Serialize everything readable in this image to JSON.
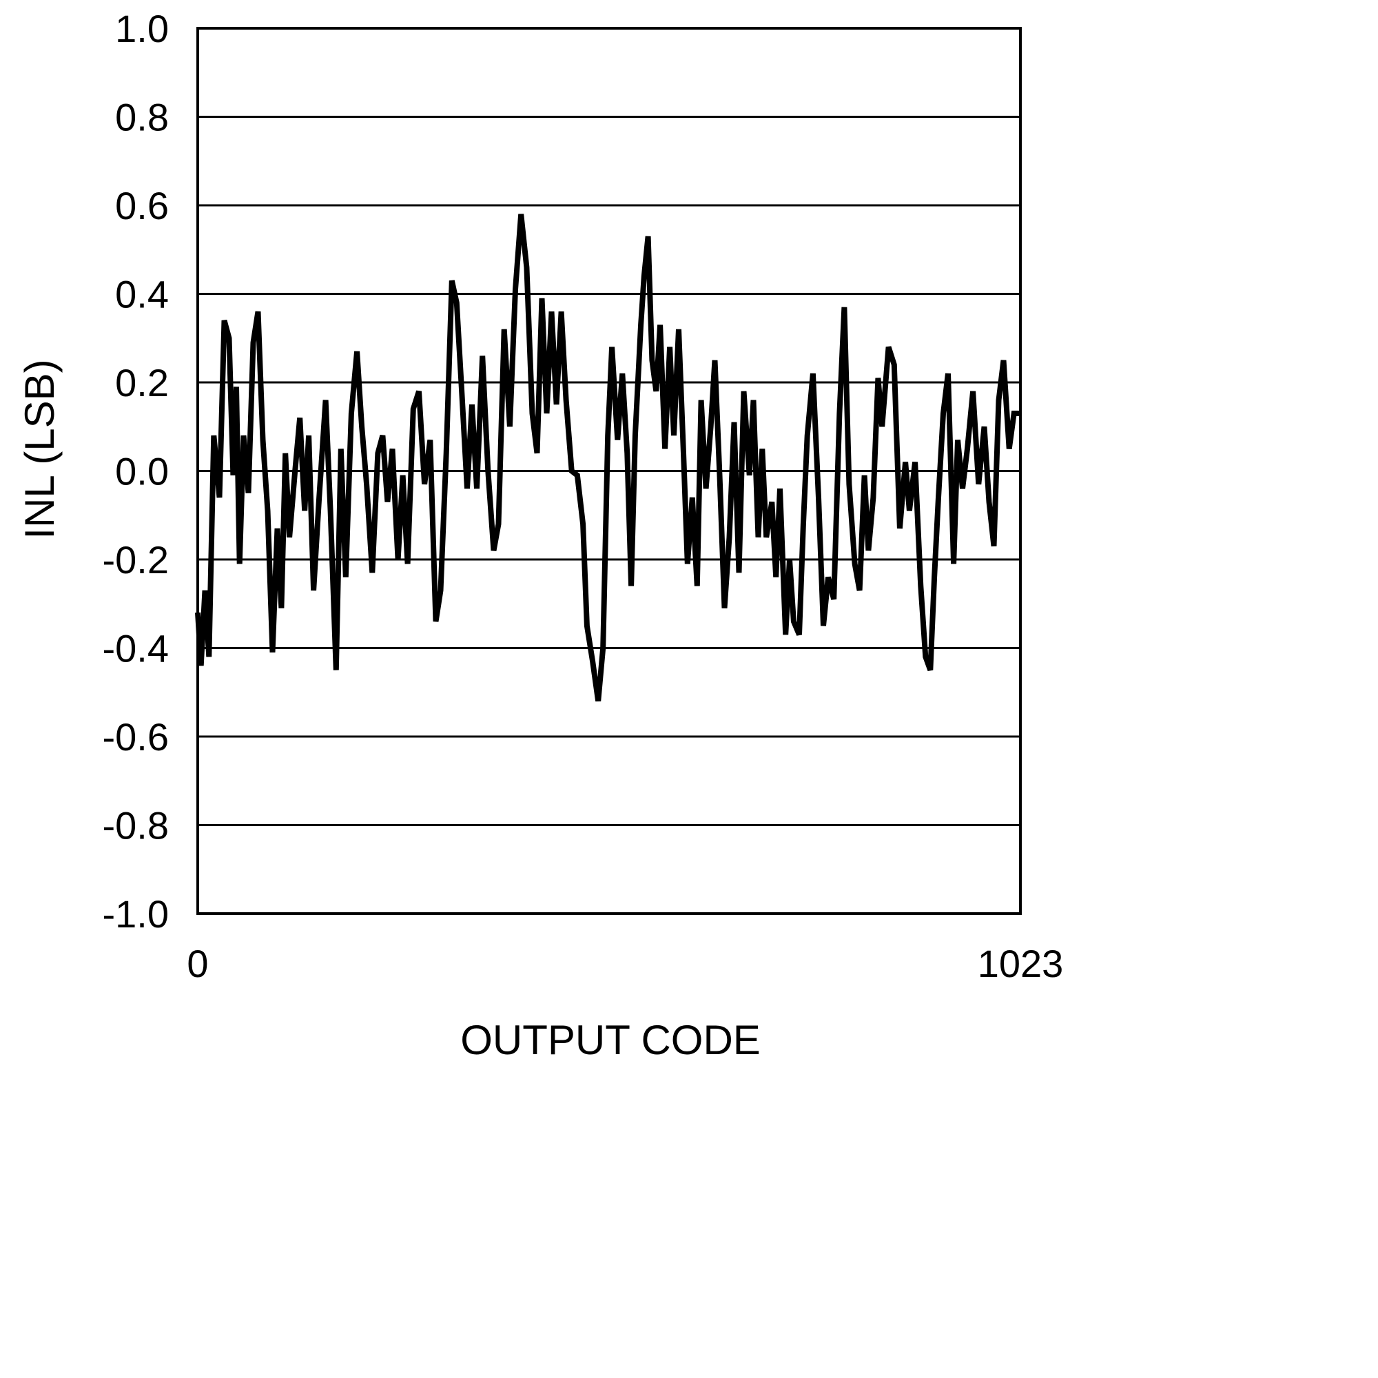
{
  "chart_data": {
    "type": "line",
    "title": "",
    "xlabel": "OUTPUT CODE",
    "ylabel": "INL (LSB)",
    "xlim": [
      0,
      1023
    ],
    "ylim": [
      -1.0,
      1.0
    ],
    "x_ticks": [
      "0",
      "1023"
    ],
    "y_ticks": [
      "1.0",
      "0.8",
      "0.6",
      "0.4",
      "0.2",
      "0.0",
      "-0.2",
      "-0.4",
      "-0.6",
      "-0.8",
      "-1.0"
    ],
    "grid": "horizontal",
    "line_color": "#000000",
    "series": [
      {
        "x": [
          0,
          4,
          9,
          14,
          20,
          27,
          33,
          39,
          44,
          48,
          52,
          57,
          63,
          69,
          75,
          81,
          87,
          93,
          99,
          104,
          109,
          114,
          121,
          127,
          133,
          138,
          144,
          151,
          159,
          165,
          172,
          178,
          184,
          191,
          198,
          204,
          210,
          217,
          224,
          230,
          236,
          242,
          249,
          255,
          261,
          268,
          275,
          282,
          289,
          296,
          302,
          309,
          316,
          322,
          328,
          335,
          341,
          347,
          354,
          361,
          368,
          374,
          381,
          388,
          395,
          402,
          409,
          416,
          422,
          428,
          434,
          440,
          446,
          452,
          458,
          465,
          472,
          479,
          484,
          491,
          498,
          504,
          510,
          515,
          522,
          528,
          534,
          539,
          544,
          551,
          555,
          560,
          565,
          570,
          575,
          581,
          587,
          592,
          598,
          604,
          609,
          615,
          621,
          626,
          632,
          638,
          643,
          649,
          655,
          661,
          667,
          673,
          679,
          686,
          691,
          697,
          702,
          707,
          714,
          719,
          724,
          731,
          736,
          741,
          748,
          753,
          758,
          765,
          772,
          778,
          784,
          791,
          798,
          804,
          810,
          817,
          823,
          829,
          834,
          840,
          846,
          851,
          859,
          866,
          873,
          880,
          885,
          892,
          899,
          905,
          911,
          916,
          921,
          927,
          933,
          940,
          945,
          951,
          957,
          964,
          971,
          978,
          984,
          990,
          996,
          1002,
          1009,
          1015,
          1023
        ],
        "y": [
          -0.32,
          -0.44,
          -0.27,
          -0.42,
          0.08,
          -0.06,
          0.34,
          0.3,
          -0.01,
          0.19,
          -0.21,
          0.08,
          -0.05,
          0.29,
          0.36,
          0.07,
          -0.09,
          -0.41,
          -0.13,
          -0.31,
          0.04,
          -0.15,
          0.0,
          0.12,
          -0.09,
          0.08,
          -0.27,
          -0.06,
          0.16,
          -0.09,
          -0.45,
          0.05,
          -0.24,
          0.13,
          0.27,
          0.1,
          -0.03,
          -0.23,
          0.04,
          0.08,
          -0.07,
          0.05,
          -0.2,
          -0.01,
          -0.21,
          0.14,
          0.18,
          -0.03,
          0.07,
          -0.34,
          -0.27,
          0.04,
          0.43,
          0.38,
          0.19,
          -0.04,
          0.15,
          -0.04,
          0.26,
          0.0,
          -0.18,
          -0.12,
          0.32,
          0.1,
          0.41,
          0.58,
          0.46,
          0.13,
          0.04,
          0.39,
          0.13,
          0.36,
          0.15,
          0.36,
          0.16,
          0.0,
          -0.01,
          -0.12,
          -0.35,
          -0.43,
          -0.52,
          -0.4,
          0.08,
          0.28,
          0.07,
          0.22,
          0.04,
          -0.26,
          0.08,
          0.33,
          0.44,
          0.53,
          0.25,
          0.18,
          0.33,
          0.05,
          0.28,
          0.08,
          0.32,
          0.04,
          -0.21,
          -0.06,
          -0.26,
          0.16,
          -0.04,
          0.1,
          0.25,
          -0.01,
          -0.31,
          -0.15,
          0.11,
          -0.23,
          0.18,
          -0.01,
          0.16,
          -0.15,
          0.05,
          -0.15,
          -0.07,
          -0.24,
          -0.04,
          -0.37,
          -0.2,
          -0.34,
          -0.37,
          -0.12,
          0.08,
          0.22,
          -0.06,
          -0.35,
          -0.24,
          -0.29,
          0.13,
          0.37,
          -0.03,
          -0.21,
          -0.27,
          -0.01,
          -0.18,
          -0.06,
          0.21,
          0.1,
          0.28,
          0.24,
          -0.13,
          0.02,
          -0.09,
          0.02,
          -0.26,
          -0.42,
          -0.45,
          -0.24,
          -0.06,
          0.13,
          0.22,
          -0.21,
          0.07,
          -0.04,
          0.05,
          0.18,
          -0.03,
          0.1,
          -0.07,
          -0.17,
          0.16,
          0.25,
          0.05,
          0.13,
          0.13
        ]
      }
    ]
  }
}
